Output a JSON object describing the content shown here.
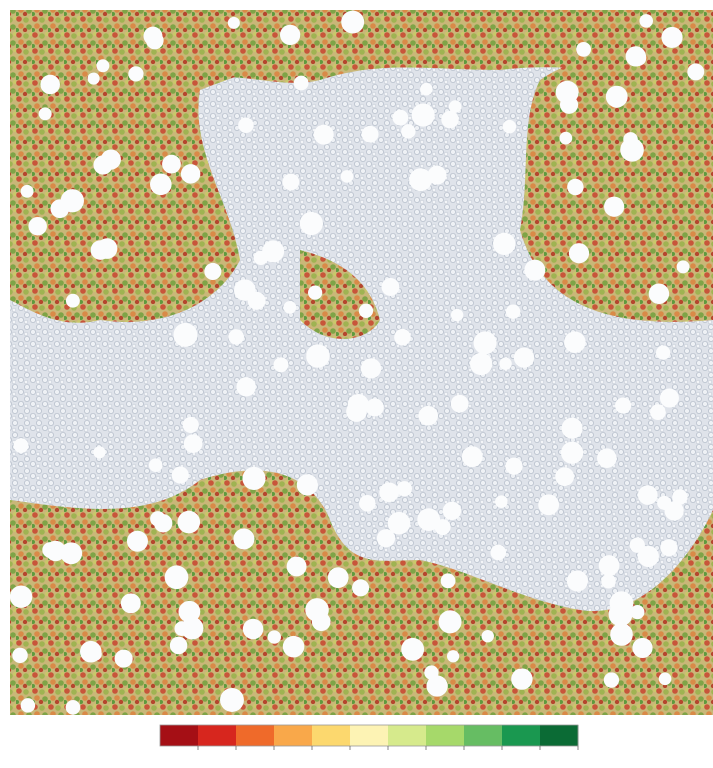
{
  "colorbar": {
    "colors": [
      "#a50f15",
      "#d7261e",
      "#ef6a2a",
      "#f9a84a",
      "#fcd86e",
      "#fdf3b4",
      "#d6ea8c",
      "#a6d96a",
      "#66bd63",
      "#1a9850",
      "#0b6b35"
    ]
  }
}
